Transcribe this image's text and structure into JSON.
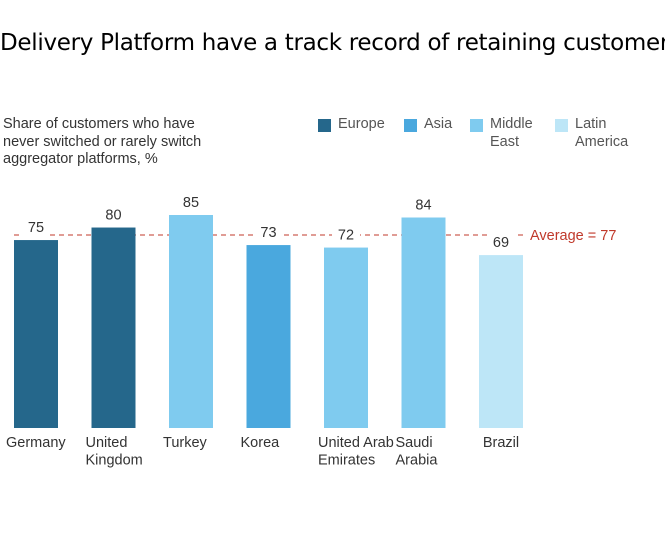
{
  "title": "Delivery Platform have a track record of retaining customers",
  "chart_data": {
    "type": "bar",
    "subtitle_lines": [
      "Share of customers who have",
      "never switched or rarely switch",
      "aggregator platforms, %"
    ],
    "categories": [
      {
        "lines": [
          "Germany"
        ]
      },
      {
        "lines": [
          "United",
          "Kingdom"
        ]
      },
      {
        "lines": [
          "Turkey"
        ]
      },
      {
        "lines": [
          "Korea"
        ]
      },
      {
        "lines": [
          "United Arab",
          "Emirates"
        ]
      },
      {
        "lines": [
          "Saudi",
          "Arabia"
        ]
      },
      {
        "lines": [
          "Brazil"
        ]
      }
    ],
    "values": [
      75,
      80,
      85,
      73,
      72,
      84,
      69
    ],
    "value_labels": [
      "75",
      "80",
      "85",
      "73",
      "72",
      "84",
      "69"
    ],
    "regions": [
      "Europe",
      "Europe",
      "Middle East",
      "Asia",
      "Middle East",
      "Middle East",
      "Latin America"
    ],
    "legend": [
      {
        "lines": [
          "Europe"
        ],
        "color": "#25678b"
      },
      {
        "lines": [
          "Asia"
        ],
        "color": "#4aa8de"
      },
      {
        "lines": [
          "Middle",
          "East"
        ],
        "color": "#7fcbef"
      },
      {
        "lines": [
          "Latin",
          "America"
        ],
        "color": "#bde6f7"
      }
    ],
    "average": {
      "value": 77,
      "label": "Average = 77",
      "color": "#c0392b"
    },
    "ylim": [
      0,
      85
    ],
    "legend_position": "top-right"
  }
}
